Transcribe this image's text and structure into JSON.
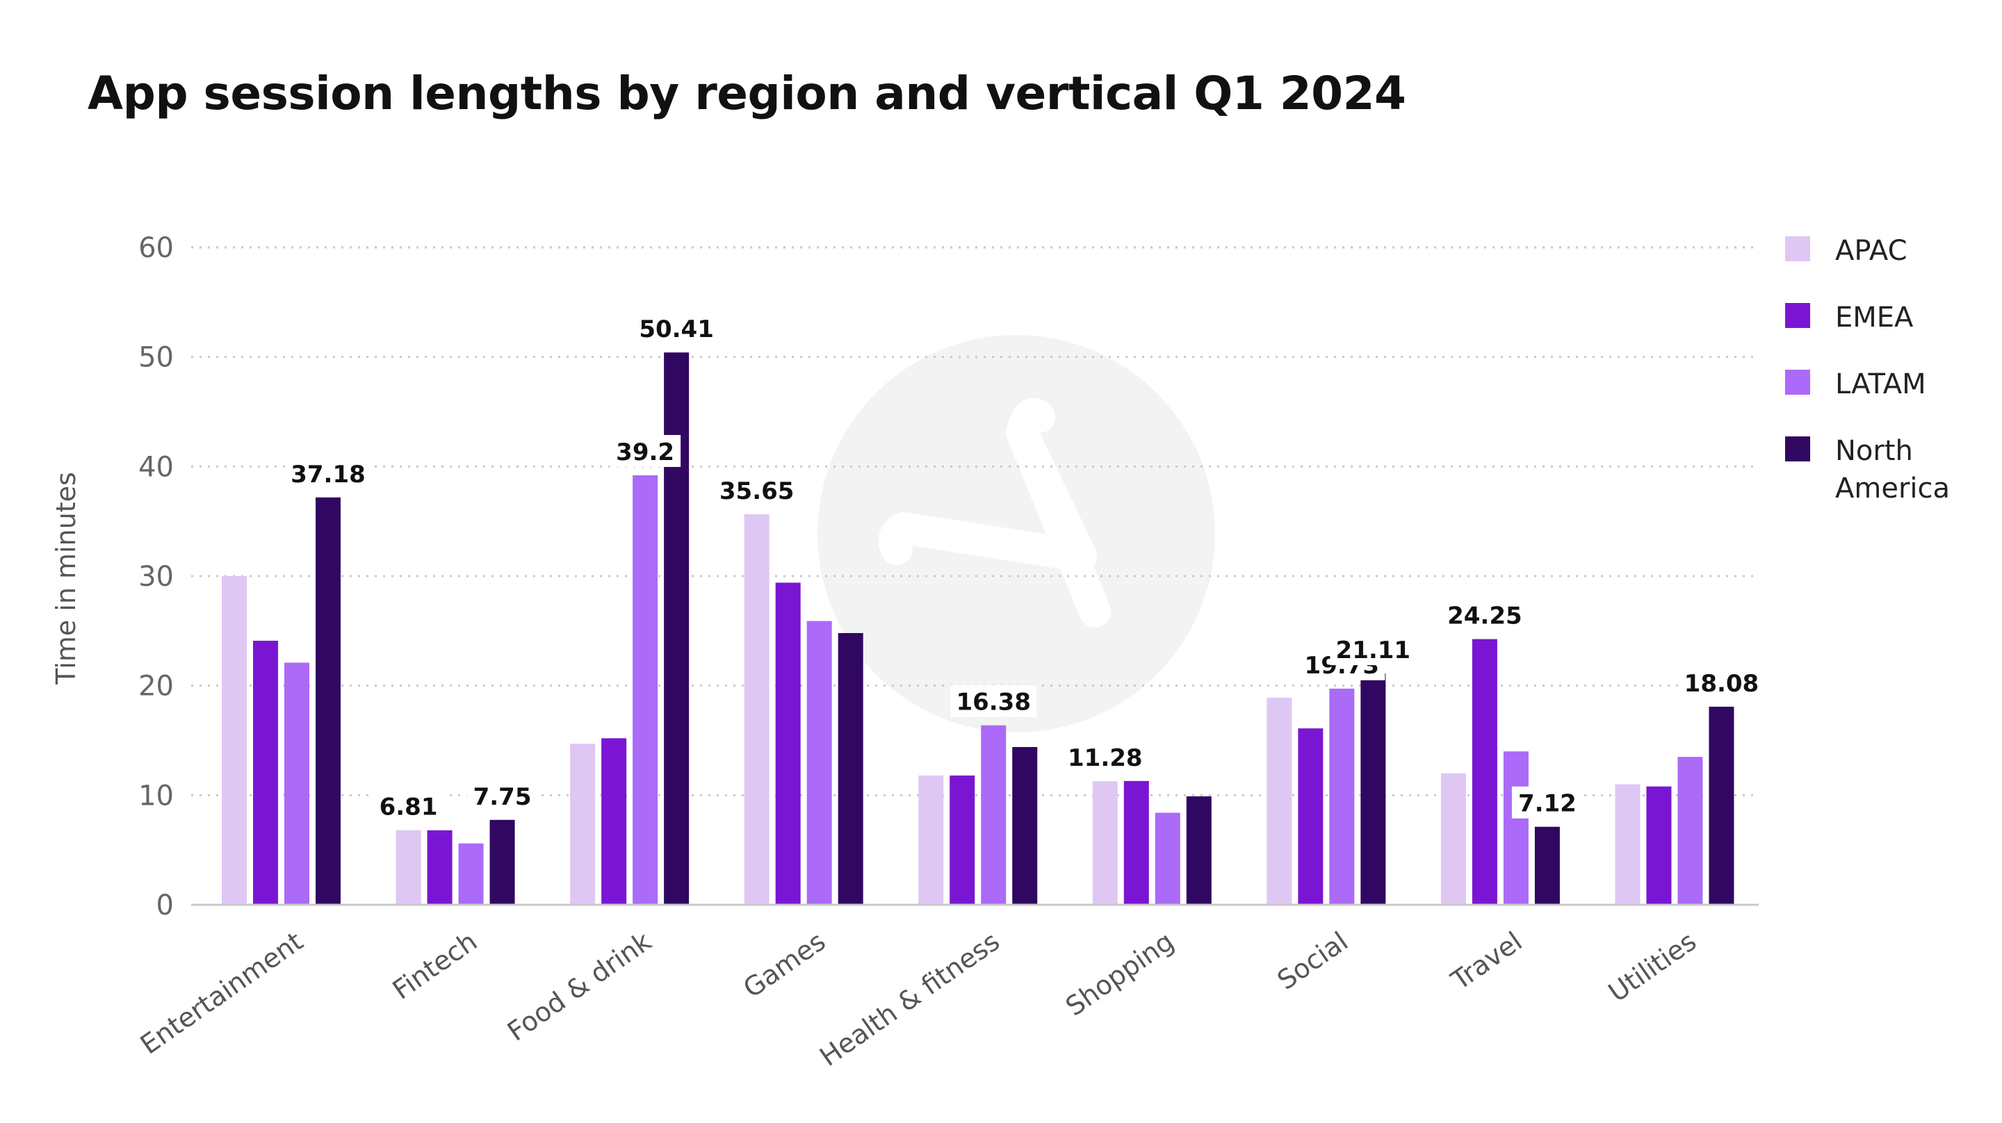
{
  "chart_data": {
    "type": "bar",
    "title": "App session lengths by region and vertical Q1 2024",
    "ylabel": "Time in minutes",
    "xlabel": "",
    "ylim": [
      0,
      60
    ],
    "yticks": [
      0,
      10,
      20,
      30,
      40,
      50,
      60
    ],
    "grid": true,
    "legend_position": "right",
    "categories": [
      "Entertainment",
      "Fintech",
      "Food & drink",
      "Games",
      "Health & fitness",
      "Shopping",
      "Social",
      "Travel",
      "Utilities"
    ],
    "series": [
      {
        "name": "APAC",
        "color": "#dfc7f4",
        "values": [
          30.0,
          6.81,
          14.7,
          35.65,
          11.8,
          11.28,
          18.9,
          12.0,
          11.0
        ]
      },
      {
        "name": "EMEA",
        "color": "#7a16d3",
        "values": [
          24.1,
          6.8,
          15.2,
          29.4,
          11.8,
          11.3,
          16.1,
          24.25,
          10.8
        ]
      },
      {
        "name": "LATAM",
        "color": "#ab6af8",
        "values": [
          22.1,
          5.6,
          39.2,
          25.9,
          16.38,
          8.4,
          19.73,
          14.0,
          13.5
        ]
      },
      {
        "name": "North America",
        "color": "#300761",
        "values": [
          37.18,
          7.75,
          50.41,
          24.8,
          14.4,
          9.9,
          21.11,
          7.12,
          18.08
        ]
      }
    ],
    "data_labels": [
      {
        "category": 0,
        "series": 3,
        "text": "37.18"
      },
      {
        "category": 1,
        "series": 0,
        "text": "6.81"
      },
      {
        "category": 1,
        "series": 3,
        "text": "7.75"
      },
      {
        "category": 2,
        "series": 2,
        "text": "39.2"
      },
      {
        "category": 2,
        "series": 3,
        "text": "50.41"
      },
      {
        "category": 3,
        "series": 0,
        "text": "35.65"
      },
      {
        "category": 4,
        "series": 2,
        "text": "16.38"
      },
      {
        "category": 5,
        "series": 0,
        "text": "11.28"
      },
      {
        "category": 6,
        "series": 2,
        "text": "19.73"
      },
      {
        "category": 6,
        "series": 3,
        "text": "21.11"
      },
      {
        "category": 7,
        "series": 1,
        "text": "24.25"
      },
      {
        "category": 7,
        "series": 3,
        "text": "7.12"
      },
      {
        "category": 8,
        "series": 3,
        "text": "18.08"
      }
    ]
  },
  "watermark": {
    "icon": "brand-logo-icon"
  }
}
